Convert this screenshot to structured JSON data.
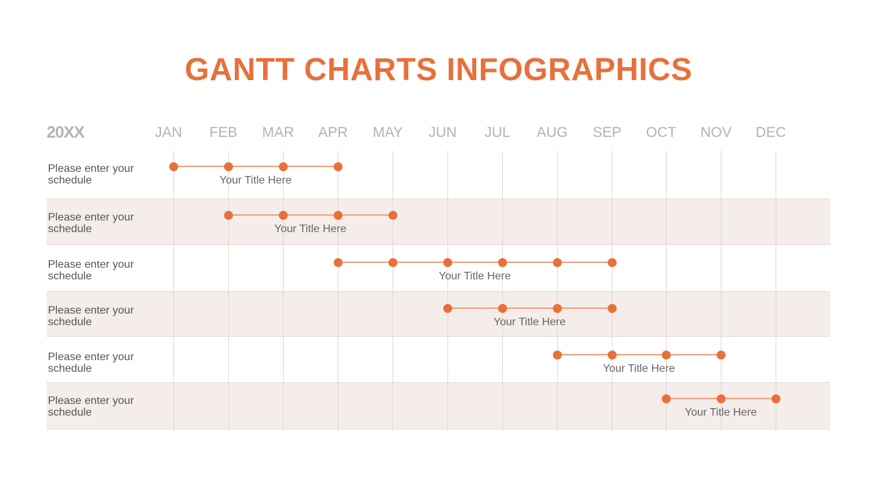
{
  "title": "GANTT CHARTS INFOGRAPHICS",
  "year": "20XX",
  "months": [
    "JAN",
    "FEB",
    "MAR",
    "APR",
    "MAY",
    "JUN",
    "JUL",
    "AUG",
    "SEP",
    "OCT",
    "NOV",
    "DEC"
  ],
  "rows": [
    {
      "label": "Please enter your schedule",
      "task": "Your Title Here"
    },
    {
      "label": "Please enter your schedule",
      "task": "Your Title Here"
    },
    {
      "label": "Please enter your schedule",
      "task": "Your Title Here"
    },
    {
      "label": "Please enter your schedule",
      "task": "Your Title Here"
    },
    {
      "label": "Please enter your schedule",
      "task": "Your Title Here"
    },
    {
      "label": "Please enter your schedule",
      "task": "Your Title Here"
    }
  ],
  "colors": {
    "accent": "#e8703a",
    "bar": "#f0a07a",
    "band": "#f4ede9",
    "muted": "#b3b3b3"
  },
  "chart_data": {
    "type": "gantt",
    "title": "GANTT CHARTS INFOGRAPHICS",
    "year": "20XX",
    "categories": [
      "JAN",
      "FEB",
      "MAR",
      "APR",
      "MAY",
      "JUN",
      "JUL",
      "AUG",
      "SEP",
      "OCT",
      "NOV",
      "DEC"
    ],
    "tasks": [
      {
        "row": "Please enter your schedule",
        "name": "Your Title Here",
        "start": "JAN",
        "end": "APR",
        "milestones": [
          "JAN",
          "FEB",
          "MAR",
          "APR"
        ]
      },
      {
        "row": "Please enter your schedule",
        "name": "Your Title Here",
        "start": "FEB",
        "end": "MAY",
        "milestones": [
          "FEB",
          "MAR",
          "APR",
          "MAY"
        ]
      },
      {
        "row": "Please enter your schedule",
        "name": "Your Title Here",
        "start": "APR",
        "end": "SEP",
        "milestones": [
          "APR",
          "MAY",
          "JUN",
          "JUL",
          "AUG",
          "SEP"
        ]
      },
      {
        "row": "Please enter your schedule",
        "name": "Your Title Here",
        "start": "JUN",
        "end": "SEP",
        "milestones": [
          "JUN",
          "JUL",
          "AUG",
          "SEP"
        ]
      },
      {
        "row": "Please enter your schedule",
        "name": "Your Title Here",
        "start": "AUG",
        "end": "NOV",
        "milestones": [
          "AUG",
          "SEP",
          "OCT",
          "NOV"
        ]
      },
      {
        "row": "Please enter your schedule",
        "name": "Your Title Here",
        "start": "OCT",
        "end": "DEC",
        "milestones": [
          "OCT",
          "NOV",
          "DEC"
        ]
      }
    ],
    "grid": true
  }
}
